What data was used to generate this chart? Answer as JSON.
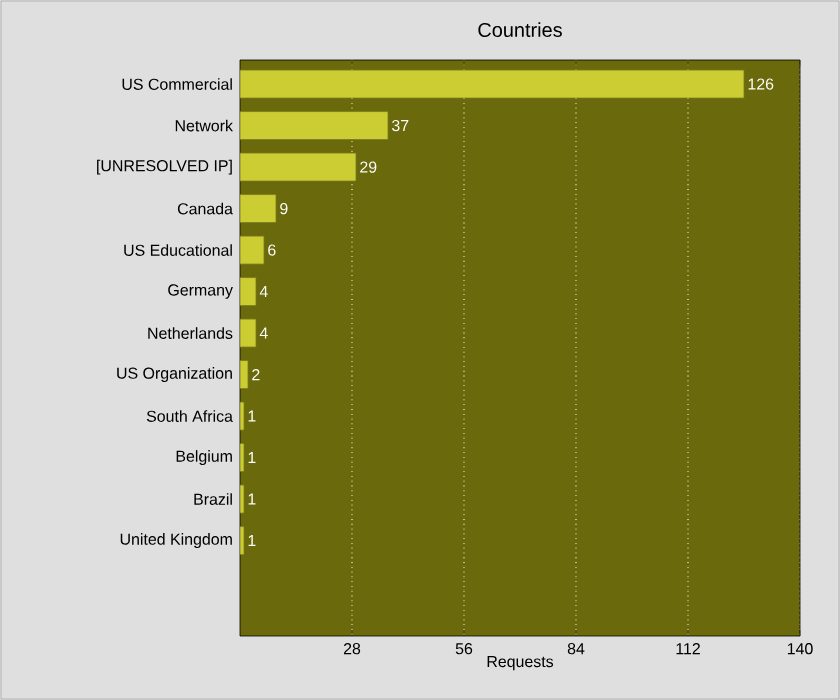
{
  "chart_data": {
    "type": "bar",
    "orientation": "horizontal",
    "title": "Countries",
    "xlabel": "Requests",
    "categories": [
      "US Commercial",
      "Network",
      "[UNRESOLVED IP]",
      "Canada",
      "US Educational",
      "Germany",
      "Netherlands",
      "US Organization",
      "South Africa",
      "Belgium",
      "Brazil",
      "United Kingdom"
    ],
    "values": [
      126,
      37,
      29,
      9,
      6,
      4,
      4,
      2,
      1,
      1,
      1,
      1
    ],
    "color": "#cccc33",
    "xlim": [
      0,
      140
    ],
    "xticks": [
      28,
      56,
      84,
      112,
      140
    ],
    "grid": "x",
    "data_labels": true
  }
}
